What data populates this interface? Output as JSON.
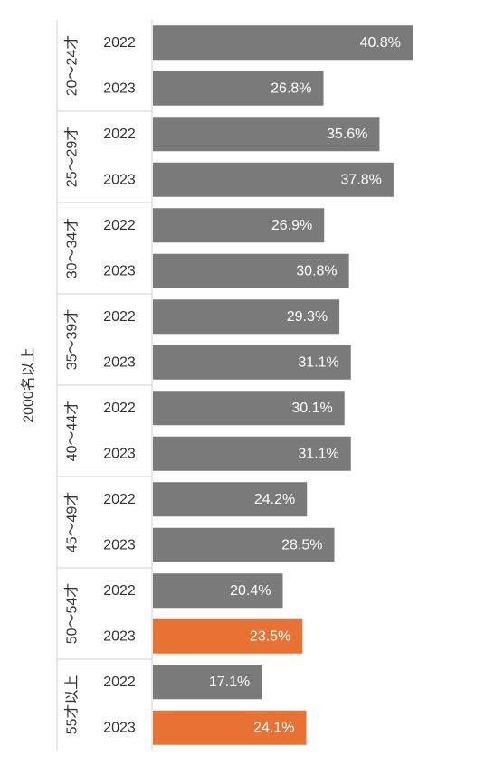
{
  "chart_data": {
    "type": "bar",
    "orientation": "horizontal",
    "outer_group": "2000名以上",
    "groups": [
      {
        "label": "20～24才",
        "rows": [
          {
            "year": "2022",
            "value": 40.8,
            "label": "40.8%",
            "highlight": false
          },
          {
            "year": "2023",
            "value": 26.8,
            "label": "26.8%",
            "highlight": false
          }
        ]
      },
      {
        "label": "25～29才",
        "rows": [
          {
            "year": "2022",
            "value": 35.6,
            "label": "35.6%",
            "highlight": false
          },
          {
            "year": "2023",
            "value": 37.8,
            "label": "37.8%",
            "highlight": false
          }
        ]
      },
      {
        "label": "30～34才",
        "rows": [
          {
            "year": "2022",
            "value": 26.9,
            "label": "26.9%",
            "highlight": false
          },
          {
            "year": "2023",
            "value": 30.8,
            "label": "30.8%",
            "highlight": false
          }
        ]
      },
      {
        "label": "35～39才",
        "rows": [
          {
            "year": "2022",
            "value": 29.3,
            "label": "29.3%",
            "highlight": false
          },
          {
            "year": "2023",
            "value": 31.1,
            "label": "31.1%",
            "highlight": false
          }
        ]
      },
      {
        "label": "40～44才",
        "rows": [
          {
            "year": "2022",
            "value": 30.1,
            "label": "30.1%",
            "highlight": false
          },
          {
            "year": "2023",
            "value": 31.1,
            "label": "31.1%",
            "highlight": false
          }
        ]
      },
      {
        "label": "45～49才",
        "rows": [
          {
            "year": "2022",
            "value": 24.2,
            "label": "24.2%",
            "highlight": false
          },
          {
            "year": "2023",
            "value": 28.5,
            "label": "28.5%",
            "highlight": false
          }
        ]
      },
      {
        "label": "50～54才",
        "rows": [
          {
            "year": "2022",
            "value": 20.4,
            "label": "20.4%",
            "highlight": false
          },
          {
            "year": "2023",
            "value": 23.5,
            "label": "23.5%",
            "highlight": true
          }
        ]
      },
      {
        "label": "55才以上",
        "rows": [
          {
            "year": "2022",
            "value": 17.1,
            "label": "17.1%",
            "highlight": false
          },
          {
            "year": "2023",
            "value": 24.1,
            "label": "24.1%",
            "highlight": true
          }
        ]
      }
    ],
    "colors": {
      "bar": "#7a7a7a",
      "highlight": "#e87233",
      "value_label": "#ffffff",
      "text": "#333333",
      "divider": "#d0d0d0"
    }
  }
}
